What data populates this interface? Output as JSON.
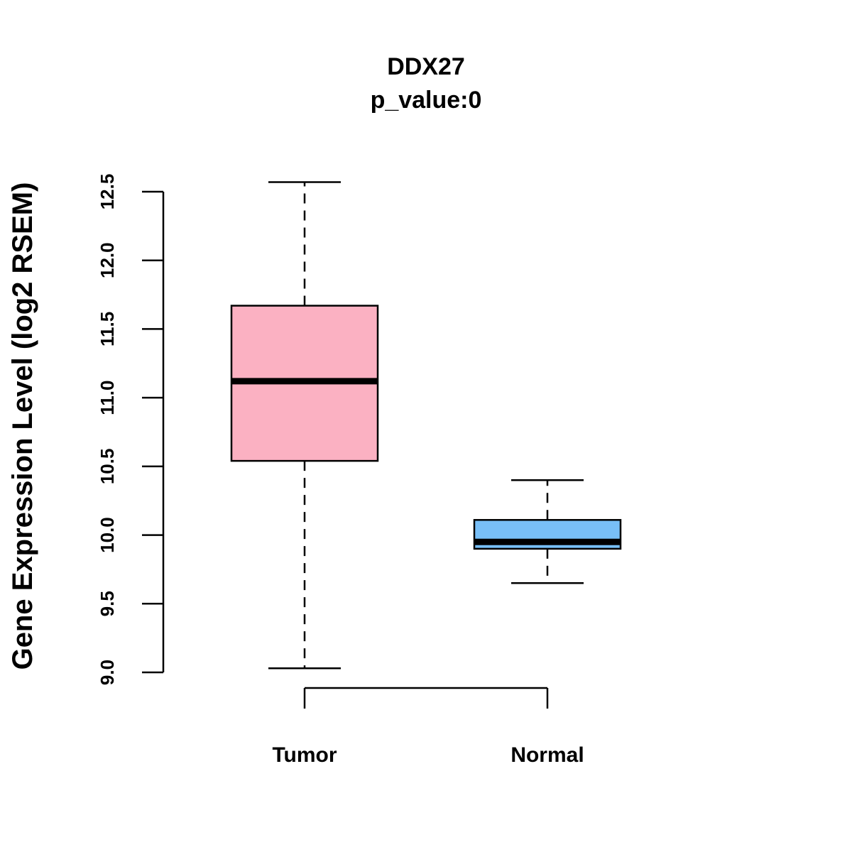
{
  "chart_data": {
    "type": "boxplot",
    "title": "DDX27",
    "subtitle": "p_value:0",
    "xlabel": "",
    "ylabel": "Gene Expression Level (log2 RSEM)",
    "ylim": [
      9.0,
      12.5
    ],
    "yticks": [
      {
        "value": 9.0,
        "label": "9.0"
      },
      {
        "value": 9.5,
        "label": "9.5"
      },
      {
        "value": 10.0,
        "label": "10.0"
      },
      {
        "value": 10.5,
        "label": "10.5"
      },
      {
        "value": 11.0,
        "label": "11.0"
      },
      {
        "value": 11.5,
        "label": "11.5"
      },
      {
        "value": 12.0,
        "label": "12.0"
      },
      {
        "value": 12.5,
        "label": "12.5"
      }
    ],
    "categories": [
      "Tumor",
      "Normal"
    ],
    "boxes": [
      {
        "category": "Tumor",
        "whisker_low": 9.03,
        "q1": 10.54,
        "median": 11.12,
        "q3": 11.67,
        "whisker_high": 12.57,
        "color": "#FBB1C2"
      },
      {
        "category": "Normal",
        "whisker_low": 9.65,
        "q1": 9.9,
        "median": 9.95,
        "q3": 10.11,
        "whisker_high": 10.4,
        "color": "#78BFF7"
      }
    ],
    "grid": false,
    "legend": "none"
  }
}
